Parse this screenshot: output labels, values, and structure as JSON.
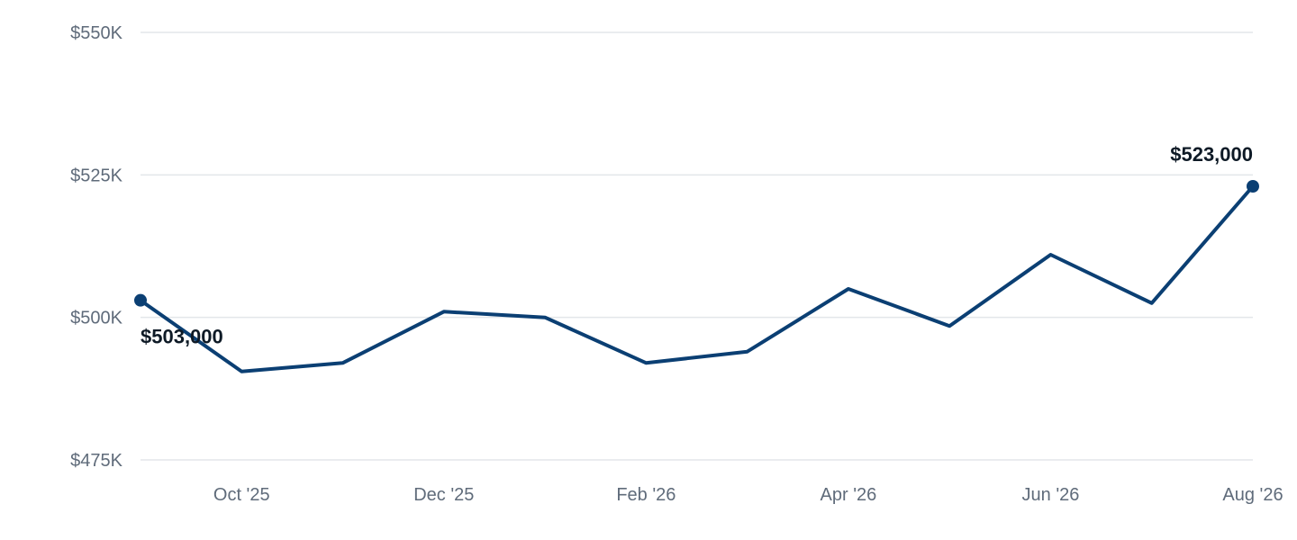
{
  "colors": {
    "series": "#0b3f73",
    "grid": "#e3e6ea",
    "tick_text": "#5f6b7a",
    "label_text": "#0e1a26"
  },
  "chart_data": {
    "type": "line",
    "title": "",
    "xlabel": "",
    "ylabel": "",
    "grid": true,
    "legend": "none",
    "x": [
      "2025-09",
      "2025-10",
      "2025-11",
      "2025-12",
      "2026-01",
      "2026-02",
      "2026-03",
      "2026-04",
      "2026-05",
      "2026-06",
      "2026-07",
      "2026-08"
    ],
    "series": [
      {
        "values": [
          503000,
          490500,
          492000,
          501000,
          500000,
          492000,
          494000,
          505000,
          498500,
          511000,
          502500,
          523000
        ]
      }
    ],
    "ylim": [
      475000,
      550000
    ],
    "y_ticks": [
      {
        "value": 550000,
        "label": "$550K"
      },
      {
        "value": 525000,
        "label": "$525K"
      },
      {
        "value": 500000,
        "label": "$500K"
      },
      {
        "value": 475000,
        "label": "$475K"
      }
    ],
    "x_ticks": [
      {
        "index": 1,
        "label": "Oct '25"
      },
      {
        "index": 3,
        "label": "Dec '25"
      },
      {
        "index": 5,
        "label": "Feb '26"
      },
      {
        "index": 7,
        "label": "Apr '26"
      },
      {
        "index": 9,
        "label": "Jun '26"
      },
      {
        "index": 11,
        "label": "Aug '26"
      }
    ],
    "annotations": [
      {
        "index": 0,
        "text": "$503,000"
      },
      {
        "index": 11,
        "text": "$523,000"
      }
    ]
  }
}
